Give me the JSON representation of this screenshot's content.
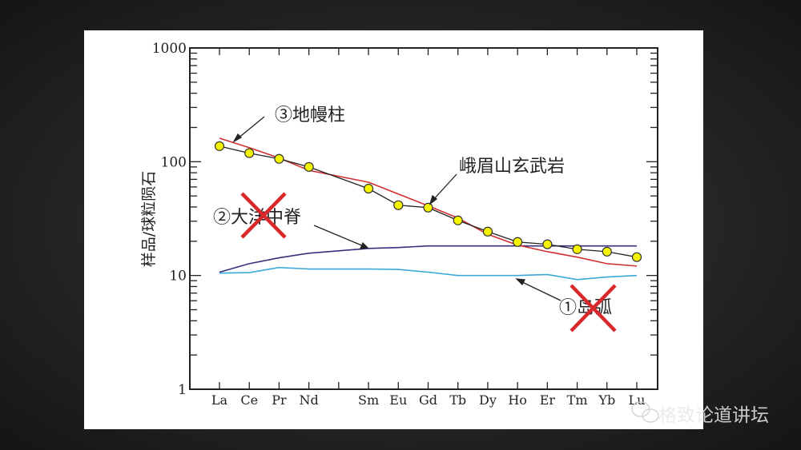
{
  "watermark": {
    "text": "格致论道讲坛",
    "icon": "wechat-icon"
  },
  "colors": {
    "basalt": "#222222",
    "basalt_marker": "#f5f500",
    "plume": "#d03030",
    "morb": "#3a2e7a",
    "arc": "#3aa8d8",
    "cross": "#d8282a"
  },
  "chart_data": {
    "type": "line",
    "ylabel": "样品/球粒陨石",
    "yscale": "log",
    "ylim": [
      1,
      1000
    ],
    "yticks": [
      "1",
      "10",
      "100",
      "1000"
    ],
    "categories": [
      "La",
      "Ce",
      "Pr",
      "Nd",
      "Sm",
      "Eu",
      "Gd",
      "Tb",
      "Dy",
      "Ho",
      "Er",
      "Tm",
      "Yb",
      "Lu"
    ],
    "category_slots": [
      0,
      1,
      2,
      3,
      5,
      6,
      7,
      8,
      9,
      10,
      11,
      12,
      13,
      14
    ],
    "series": [
      {
        "name": "峨眉山玄武岩",
        "values": [
          137,
          119,
          106,
          90,
          58,
          41.5,
          39.5,
          30.5,
          24.3,
          19.7,
          18.8,
          17,
          16.2,
          14.5
        ],
        "color": "#222222",
        "marker": "circle"
      },
      {
        "name": "③地幔柱",
        "values": [
          161,
          133,
          108,
          84,
          66,
          52,
          41,
          32,
          23,
          18.5,
          16.2,
          14.5,
          12.7,
          12.1
        ],
        "color": "#d03030"
      },
      {
        "name": "②大洋中脊",
        "values": [
          10.7,
          12.7,
          14.3,
          15.7,
          17.3,
          17.6,
          18.2,
          18.2,
          18.2,
          18.2,
          18.2,
          18.2,
          18.2,
          18.2
        ],
        "color": "#3a2e7a",
        "crossed_out": true
      },
      {
        "name": "①岛弧",
        "values": [
          10.5,
          10.6,
          11.75,
          11.4,
          11.4,
          11.3,
          10.7,
          10,
          10,
          10,
          10.2,
          9.2,
          9.7,
          10
        ],
        "color": "#3aa8d8",
        "crossed_out": true
      }
    ],
    "annotations": [
      "③地幔柱",
      "峨眉山玄武岩",
      "②大洋中脊",
      "①岛弧"
    ],
    "grid": false,
    "legend": "none"
  }
}
